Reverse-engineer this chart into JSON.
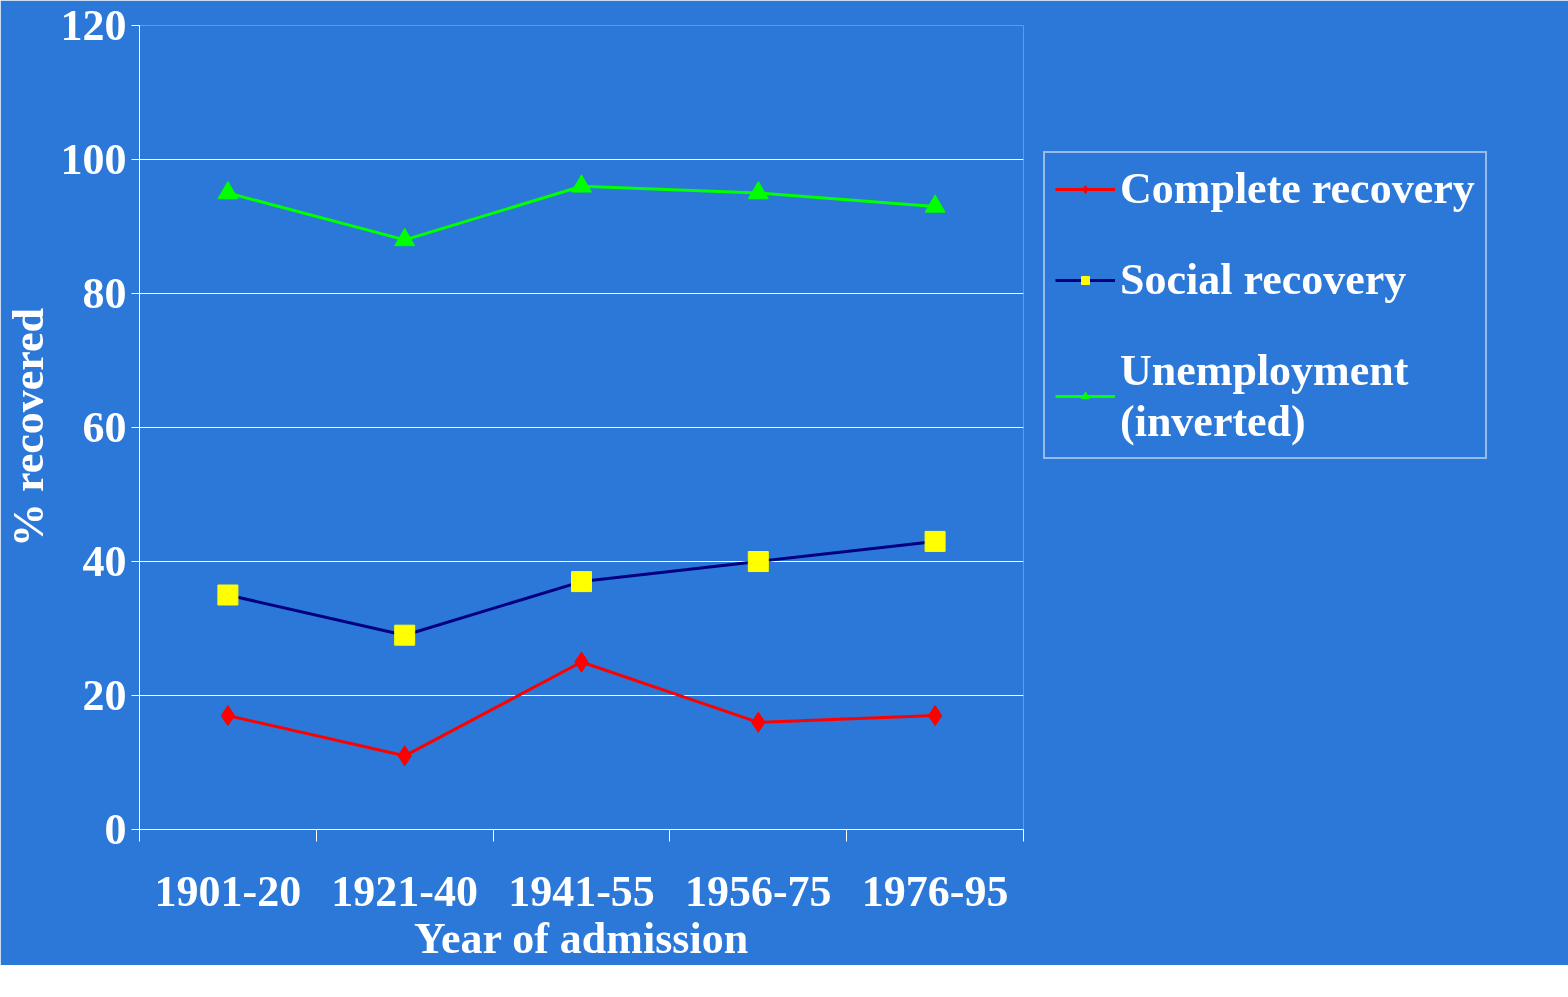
{
  "chart_data": {
    "type": "line",
    "xlabel": "Year of admission",
    "ylabel": "% recovered",
    "categories": [
      "1901-20",
      "1921-40",
      "1941-55",
      "1956-75",
      "1976-95"
    ],
    "series": [
      {
        "name": "Complete recovery",
        "color": "#ff0000",
        "marker": "diamond",
        "values": [
          17,
          11,
          25,
          16,
          17
        ]
      },
      {
        "name": "Social recovery",
        "color": "#000080",
        "marker": "square",
        "colors": [
          "#ffff00",
          "#ffff00",
          "#ffff00",
          "#ffff00",
          "#ffff00"
        ],
        "values": [
          35,
          29,
          37,
          40,
          43
        ]
      },
      {
        "name": "Unemployment (inverted)",
        "color": "#00ff00",
        "marker": "triangle",
        "values": [
          95,
          88,
          96,
          95,
          93
        ]
      }
    ],
    "ylim": [
      0,
      120
    ],
    "yticks": [
      0,
      20,
      40,
      60,
      80,
      100,
      120
    ],
    "grid": "y",
    "legend": "right",
    "line_style": "solid"
  }
}
